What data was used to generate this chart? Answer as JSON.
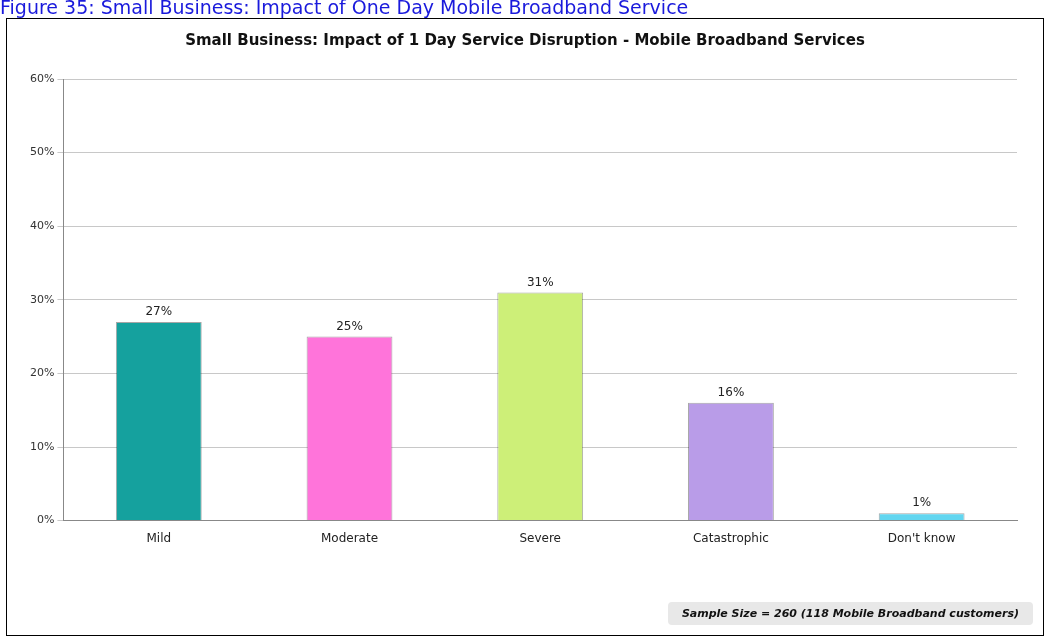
{
  "chart_data": {
    "type": "bar",
    "subtitle": "Figure 35: Small Business: Impact of One Day Mobile Broadband Service",
    "title": "Small Business: Impact of 1 Day Service Disruption - Mobile Broadband Services",
    "categories": [
      "Mild",
      "Moderate",
      "Severe",
      "Catastrophic",
      "Don't know"
    ],
    "values": [
      27,
      25,
      31,
      16,
      1
    ],
    "colors": [
      "#15a19e",
      "#ff74da",
      "#cdef78",
      "#b99ce8",
      "#62d6f0"
    ],
    "value_labels": [
      "27%",
      "25%",
      "31%",
      "16%",
      "1%"
    ],
    "ylim": [
      0,
      60
    ],
    "yticks": [
      {
        "value": 0,
        "label": "0%"
      },
      {
        "value": 10,
        "label": "10%"
      },
      {
        "value": 20,
        "label": "20%"
      },
      {
        "value": 30,
        "label": "30%"
      },
      {
        "value": 40,
        "label": "40%"
      },
      {
        "value": 50,
        "label": "50%"
      },
      {
        "value": 60,
        "label": "60%"
      }
    ],
    "grid": "y",
    "annotations": [
      "Sample Size = 260 (118 Mobile Broadband customers)"
    ]
  }
}
